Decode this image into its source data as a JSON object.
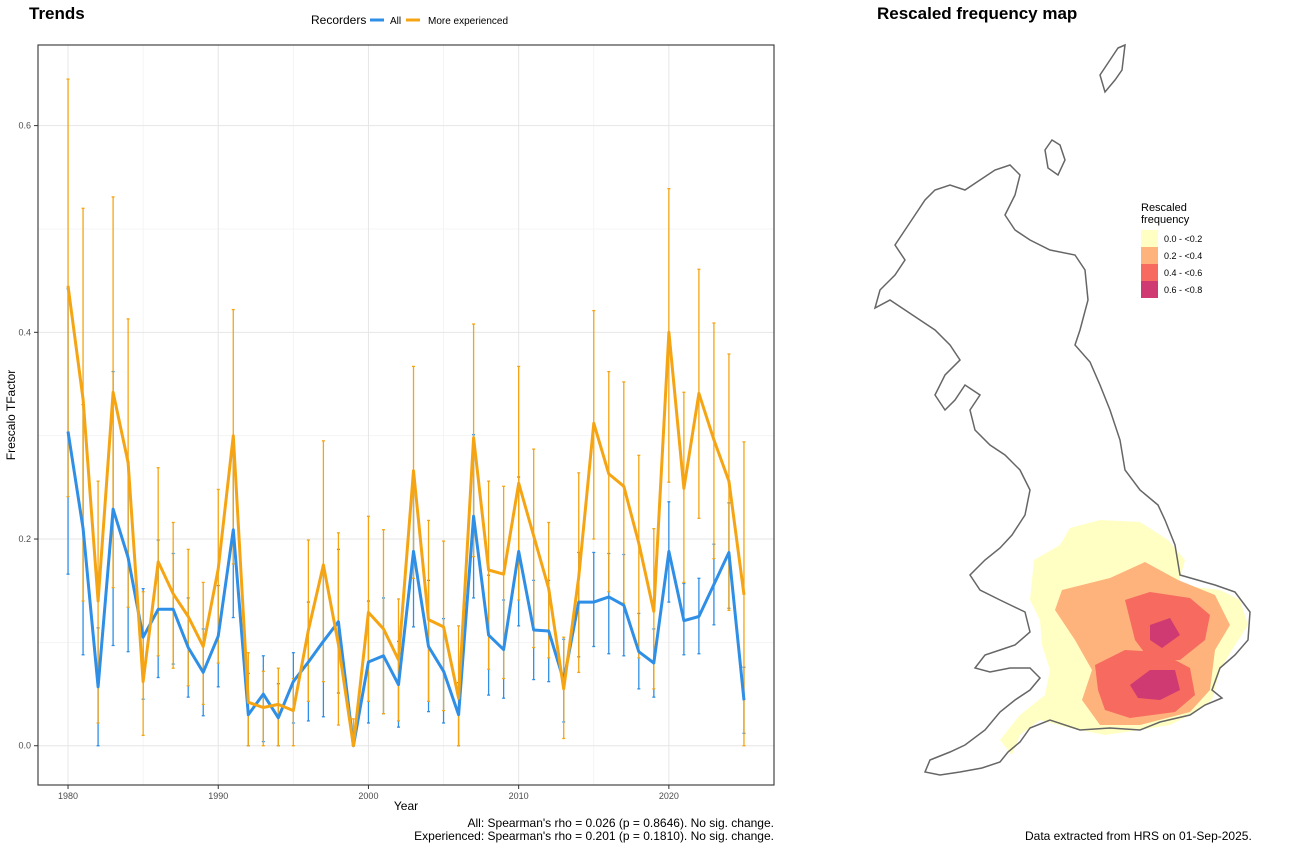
{
  "left_panel": {
    "title": "Trends",
    "stats_all": "All: Spearman's rho = 0.026 (p = 0.8646). No sig. change.",
    "stats_experienced": "Experienced: Spearman's rho = 0.201 (p = 0.1810). No sig. change."
  },
  "right_panel": {
    "title": "Rescaled frequency map",
    "legend_title_line1": "Rescaled",
    "legend_title_line2": "frequency",
    "legend_items": [
      {
        "label": "0.0 - <0.2",
        "color": "#ffffc4"
      },
      {
        "label": "0.2 - <0.4",
        "color": "#feb27c"
      },
      {
        "label": "0.4 - <0.6",
        "color": "#f66a5f"
      },
      {
        "label": "0.6 - <0.8",
        "color": "#cf3a72"
      }
    ],
    "footer": "Data extracted from HRS on 01-Sep-2025."
  },
  "chart_data": {
    "type": "line",
    "title": "Trends",
    "xlabel": "Year",
    "ylabel": "Frescalo TFactor",
    "xlim": [
      1978,
      2027
    ],
    "ylim": [
      -0.038,
      0.678
    ],
    "x_ticks": [
      1980,
      1990,
      2000,
      2010,
      2020
    ],
    "y_ticks": [
      0.0,
      0.2,
      0.4,
      0.6
    ],
    "y_tick_labels": [
      "0.0",
      "0.2",
      "0.4",
      "0.6"
    ],
    "grid": true,
    "legend_title": "Recorders",
    "legend_position": "top",
    "series": [
      {
        "name": "All",
        "color": "#2f8fe6",
        "x": [
          1980,
          1981,
          1982,
          1983,
          1984,
          1985,
          1986,
          1987,
          1988,
          1989,
          1990,
          1991,
          1992,
          1993,
          1994,
          1995,
          1996,
          1997,
          1998,
          1999,
          2000,
          2001,
          2002,
          2003,
          2004,
          2005,
          2006,
          2007,
          2008,
          2009,
          2010,
          2011,
          2012,
          2013,
          2014,
          2015,
          2016,
          2017,
          2018,
          2019,
          2020,
          2021,
          2022,
          2023,
          2024,
          2025
        ],
        "values": [
          0.304,
          0.21,
          0.057,
          0.229,
          0.182,
          0.105,
          0.132,
          0.132,
          0.095,
          0.071,
          0.106,
          0.209,
          0.03,
          0.05,
          0.027,
          0.062,
          0.081,
          0.101,
          0.12,
          0.0,
          0.081,
          0.087,
          0.059,
          0.188,
          0.096,
          0.072,
          0.03,
          0.222,
          0.107,
          0.093,
          0.188,
          0.112,
          0.111,
          0.063,
          0.139,
          0.139,
          0.144,
          0.136,
          0.091,
          0.08,
          0.188,
          0.121,
          0.125,
          0.156,
          0.187,
          0.044
        ],
        "err_low": [
          0.166,
          0.088,
          0.0,
          0.097,
          0.091,
          0.045,
          0.066,
          0.079,
          0.047,
          0.029,
          0.057,
          0.124,
          0.0,
          0.004,
          0.0,
          0.022,
          0.024,
          0.028,
          0.051,
          0.0,
          0.022,
          0.031,
          0.018,
          0.115,
          0.033,
          0.022,
          0.0,
          0.143,
          0.049,
          0.046,
          0.116,
          0.064,
          0.062,
          0.023,
          0.086,
          0.096,
          0.089,
          0.087,
          0.055,
          0.047,
          0.139,
          0.088,
          0.089,
          0.117,
          0.133,
          0.012
        ],
        "err_high": [
          0.442,
          0.33,
          0.114,
          0.362,
          0.274,
          0.152,
          0.199,
          0.186,
          0.143,
          0.113,
          0.155,
          0.295,
          0.07,
          0.087,
          0.06,
          0.09,
          0.139,
          0.174,
          0.19,
          0.006,
          0.14,
          0.143,
          0.101,
          0.262,
          0.16,
          0.123,
          0.061,
          0.301,
          0.165,
          0.141,
          0.26,
          0.16,
          0.16,
          0.103,
          0.187,
          0.187,
          0.186,
          0.185,
          0.128,
          0.113,
          0.236,
          0.157,
          0.162,
          0.195,
          0.235,
          0.076
        ]
      },
      {
        "name": "More experienced",
        "color": "#f5a514",
        "x": [
          1980,
          1981,
          1982,
          1983,
          1984,
          1985,
          1986,
          1987,
          1988,
          1989,
          1990,
          1991,
          1992,
          1993,
          1994,
          1995,
          1996,
          1997,
          1998,
          1999,
          2000,
          2001,
          2002,
          2003,
          2004,
          2005,
          2006,
          2007,
          2008,
          2009,
          2010,
          2011,
          2012,
          2013,
          2014,
          2015,
          2016,
          2017,
          2018,
          2019,
          2020,
          2021,
          2022,
          2023,
          2024,
          2025
        ],
        "values": [
          0.445,
          0.335,
          0.14,
          0.342,
          0.274,
          0.062,
          0.178,
          0.147,
          0.125,
          0.096,
          0.171,
          0.3,
          0.042,
          0.037,
          0.04,
          0.034,
          0.112,
          0.175,
          0.098,
          0.0,
          0.129,
          0.113,
          0.083,
          0.266,
          0.122,
          0.115,
          0.046,
          0.298,
          0.17,
          0.166,
          0.254,
          0.203,
          0.152,
          0.055,
          0.163,
          0.312,
          0.263,
          0.251,
          0.196,
          0.13,
          0.4,
          0.249,
          0.341,
          0.296,
          0.256,
          0.146
        ],
        "err_low": [
          0.241,
          0.14,
          0.022,
          0.153,
          0.134,
          0.01,
          0.087,
          0.075,
          0.058,
          0.04,
          0.08,
          0.176,
          0.0,
          0.0,
          0.0,
          0.0,
          0.043,
          0.062,
          0.02,
          0.0,
          0.043,
          0.031,
          0.024,
          0.162,
          0.043,
          0.034,
          0.0,
          0.183,
          0.074,
          0.065,
          0.141,
          0.095,
          0.085,
          0.007,
          0.071,
          0.2,
          0.149,
          0.138,
          0.085,
          0.055,
          0.255,
          0.158,
          0.22,
          0.181,
          0.131,
          0.0
        ],
        "err_high": [
          0.645,
          0.52,
          0.256,
          0.531,
          0.413,
          0.149,
          0.269,
          0.216,
          0.19,
          0.158,
          0.248,
          0.422,
          0.09,
          0.072,
          0.075,
          0.065,
          0.199,
          0.295,
          0.206,
          0.026,
          0.222,
          0.209,
          0.142,
          0.367,
          0.218,
          0.198,
          0.116,
          0.408,
          0.256,
          0.251,
          0.367,
          0.287,
          0.216,
          0.105,
          0.264,
          0.421,
          0.362,
          0.352,
          0.281,
          0.21,
          0.539,
          0.342,
          0.461,
          0.409,
          0.379,
          0.294
        ]
      }
    ]
  }
}
